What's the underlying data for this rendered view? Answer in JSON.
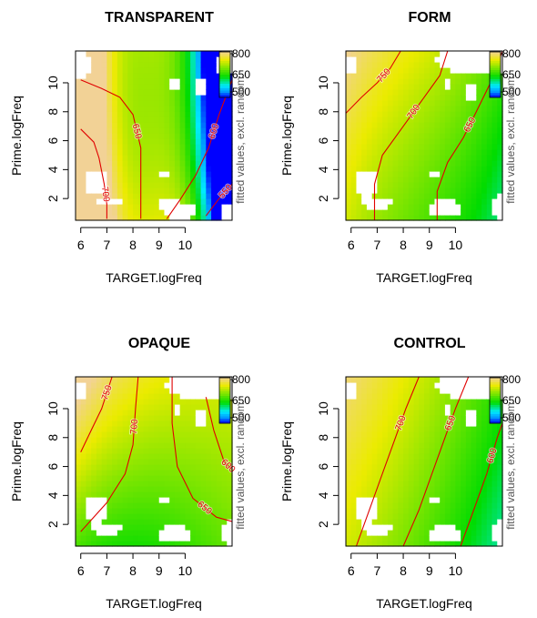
{
  "chart_data": [
    {
      "type": "heatmap",
      "title": "TRANSPARENT",
      "xlabel": "TARGET.logFreq",
      "ylabel": "Prime.logFreq",
      "colorbar_label": "fitted values, excl. random",
      "xlim": [
        5.8,
        11.8
      ],
      "ylim": [
        0.5,
        12.2
      ],
      "x_ticks": [
        "6",
        "7",
        "8",
        "9",
        "10"
      ],
      "y_ticks": [
        "2",
        "4",
        "6",
        "8",
        "10"
      ],
      "colorbar_ticks": [
        "800",
        "650",
        "500"
      ],
      "color_range": [
        480,
        800
      ],
      "model": {
        "a": 705,
        "bx": [
          0,
          10,
          -22
        ],
        "by": [
          -3,
          0.5,
          0
        ],
        "bxy": [
          0,
          -1.5,
          0
        ]
      },
      "holes": [
        [
          5.8,
          11.3,
          0.7,
          0.9
        ],
        [
          11.6,
          11.4,
          0.4,
          0.8
        ],
        [
          7.1,
          1.8,
          0.6,
          0.35
        ],
        [
          6.6,
          3.1,
          0.5,
          0.9
        ],
        [
          9.8,
          1.2,
          0.6,
          0.6
        ],
        [
          11.6,
          1.0,
          0.3,
          0.5
        ],
        [
          10.6,
          9.6,
          0.3,
          0.6
        ],
        [
          9.6,
          9.9,
          0.2,
          0.35
        ],
        [
          9.2,
          3.8,
          0.18,
          0.3
        ],
        [
          9.4,
          1.6,
          0.35,
          0.5
        ]
      ],
      "contours": [
        {
          "label": "650",
          "points": [
            [
              6.0,
              10.2
            ],
            [
              6.8,
              9.6
            ],
            [
              7.5,
              9.0
            ],
            [
              8.0,
              7.8
            ],
            [
              8.3,
              5.5
            ],
            [
              8.3,
              3.0
            ],
            [
              8.3,
              0.6
            ]
          ]
        },
        {
          "label": "700",
          "points": [
            [
              6.0,
              6.8
            ],
            [
              6.5,
              5.9
            ],
            [
              6.7,
              4.8
            ],
            [
              6.9,
              3.0
            ],
            [
              7.0,
              1.6
            ],
            [
              7.0,
              0.6
            ]
          ]
        },
        {
          "label": "600",
          "points": [
            [
              9.3,
              0.6
            ],
            [
              9.8,
              1.9
            ],
            [
              10.4,
              3.6
            ],
            [
              10.9,
              5.5
            ],
            [
              11.3,
              7.8
            ],
            [
              11.8,
              10.2
            ]
          ]
        },
        {
          "label": "550",
          "points": [
            [
              10.8,
              0.8
            ],
            [
              11.3,
              2.0
            ],
            [
              11.8,
              3.0
            ]
          ]
        }
      ]
    },
    {
      "type": "heatmap",
      "title": "FORM",
      "xlabel": "TARGET.logFreq",
      "ylabel": "Prime.logFreq",
      "colorbar_label": "fitted values, excl. random",
      "xlim": [
        5.8,
        11.8
      ],
      "ylim": [
        0.5,
        12.2
      ],
      "x_ticks": [
        "6",
        "7",
        "8",
        "9",
        "10"
      ],
      "y_ticks": [
        "2",
        "4",
        "6",
        "8",
        "10"
      ],
      "colorbar_ticks": [
        "800",
        "650",
        "500"
      ],
      "color_range": [
        480,
        800
      ],
      "model": {
        "a": 700,
        "bx": [
          -18,
          0,
          -0.6
        ],
        "by": [
          6,
          0.1,
          0
        ],
        "bxy": [
          0,
          0,
          0
        ]
      },
      "holes": [
        [
          5.8,
          11.3,
          0.4,
          0.7
        ],
        [
          10.8,
          11.6,
          1.6,
          0.9
        ],
        [
          7.0,
          1.7,
          0.6,
          0.4
        ],
        [
          6.6,
          3.0,
          0.5,
          0.9
        ],
        [
          9.6,
          1.3,
          0.7,
          0.6
        ],
        [
          11.7,
          1.5,
          0.25,
          0.9
        ],
        [
          10.6,
          9.5,
          0.3,
          0.6
        ],
        [
          9.7,
          10.0,
          0.2,
          0.35
        ],
        [
          9.2,
          3.7,
          0.18,
          0.3
        ]
      ],
      "contours": [
        {
          "label": "750",
          "points": [
            [
              5.8,
              7.9
            ],
            [
              6.4,
              9.0
            ],
            [
              7.0,
              10.0
            ],
            [
              7.5,
              11.0
            ],
            [
              7.9,
              12.2
            ]
          ]
        },
        {
          "label": "700",
          "points": [
            [
              6.9,
              0.5
            ],
            [
              6.9,
              3.0
            ],
            [
              7.2,
              5.0
            ],
            [
              8.0,
              7.0
            ],
            [
              8.8,
              9.0
            ],
            [
              9.4,
              10.5
            ],
            [
              9.7,
              12.2
            ]
          ]
        },
        {
          "label": "650",
          "points": [
            [
              9.3,
              0.5
            ],
            [
              9.3,
              2.5
            ],
            [
              9.7,
              4.5
            ],
            [
              10.3,
              6.2
            ],
            [
              10.8,
              8.0
            ],
            [
              11.4,
              10.2
            ],
            [
              11.8,
              12.2
            ]
          ]
        }
      ]
    },
    {
      "type": "heatmap",
      "title": "OPAQUE",
      "xlabel": "TARGET.logFreq",
      "ylabel": "Prime.logFreq",
      "colorbar_label": "fitted values, excl. random",
      "xlim": [
        5.8,
        11.8
      ],
      "ylim": [
        0.5,
        12.2
      ],
      "x_ticks": [
        "6",
        "7",
        "8",
        "9",
        "10"
      ],
      "y_ticks": [
        "2",
        "4",
        "6",
        "8",
        "10"
      ],
      "colorbar_ticks": [
        "800",
        "650",
        "500"
      ],
      "color_range": [
        480,
        800
      ],
      "model": {
        "a": 690,
        "bx": [
          -4,
          4,
          -0.5
        ],
        "by": [
          10,
          0,
          0
        ],
        "bxy": [
          -1.5,
          0,
          0
        ]
      },
      "holes": [
        [
          5.8,
          11.3,
          0.4,
          0.7
        ],
        [
          10.8,
          11.6,
          1.6,
          0.9
        ],
        [
          7.0,
          1.7,
          0.6,
          0.4
        ],
        [
          6.6,
          3.0,
          0.5,
          0.9
        ],
        [
          9.6,
          1.3,
          0.7,
          0.6
        ],
        [
          11.7,
          1.5,
          0.25,
          0.9
        ],
        [
          10.6,
          9.5,
          0.3,
          0.6
        ],
        [
          9.7,
          10.0,
          0.2,
          0.35
        ],
        [
          9.2,
          3.7,
          0.18,
          0.3
        ]
      ],
      "contours": [
        {
          "label": "750",
          "points": [
            [
              6.0,
              7.0
            ],
            [
              6.4,
              8.5
            ],
            [
              6.8,
              10.0
            ],
            [
              7.2,
              12.2
            ]
          ]
        },
        {
          "label": "700",
          "points": [
            [
              6.0,
              1.5
            ],
            [
              7.0,
              3.5
            ],
            [
              7.7,
              5.5
            ],
            [
              8.0,
              7.5
            ],
            [
              8.1,
              10.0
            ],
            [
              8.2,
              12.2
            ]
          ]
        },
        {
          "label": "650",
          "points": [
            [
              9.5,
              12.2
            ],
            [
              9.5,
              9.0
            ],
            [
              9.7,
              6.0
            ],
            [
              10.3,
              3.8
            ],
            [
              11.2,
              2.5
            ],
            [
              11.8,
              2.2
            ]
          ]
        },
        {
          "label": "600",
          "points": [
            [
              10.8,
              10.8
            ],
            [
              11.1,
              8.5
            ],
            [
              11.5,
              6.3
            ],
            [
              11.8,
              5.8
            ]
          ]
        }
      ]
    },
    {
      "type": "heatmap",
      "title": "CONTROL",
      "xlabel": "TARGET.logFreq",
      "ylabel": "Prime.logFreq",
      "colorbar_label": "fitted values, excl. random",
      "xlim": [
        5.8,
        11.8
      ],
      "ylim": [
        0.5,
        12.2
      ],
      "x_ticks": [
        "6",
        "7",
        "8",
        "9",
        "10"
      ],
      "y_ticks": [
        "2",
        "4",
        "6",
        "8",
        "10"
      ],
      "colorbar_ticks": [
        "800",
        "650",
        "500"
      ],
      "color_range": [
        480,
        800
      ],
      "model": {
        "a": 700,
        "bx": [
          -24,
          -1,
          0
        ],
        "by": [
          5,
          0,
          0
        ],
        "bxy": [
          0,
          0,
          0
        ]
      },
      "holes": [
        [
          5.8,
          11.3,
          0.4,
          0.7
        ],
        [
          10.8,
          11.6,
          1.6,
          0.9
        ],
        [
          7.0,
          1.7,
          0.6,
          0.4
        ],
        [
          6.6,
          3.0,
          0.5,
          0.9
        ],
        [
          9.6,
          1.3,
          0.7,
          0.6
        ],
        [
          11.7,
          1.5,
          0.25,
          0.9
        ],
        [
          10.6,
          9.5,
          0.3,
          0.6
        ],
        [
          9.7,
          10.0,
          0.2,
          0.35
        ],
        [
          9.2,
          3.7,
          0.18,
          0.3
        ]
      ],
      "contours": [
        {
          "label": "700",
          "points": [
            [
              6.2,
              0.5
            ],
            [
              6.7,
              3.0
            ],
            [
              7.2,
              5.5
            ],
            [
              7.7,
              8.0
            ],
            [
              8.1,
              10.0
            ],
            [
              8.6,
              12.2
            ]
          ]
        },
        {
          "label": "650",
          "points": [
            [
              8.0,
              0.5
            ],
            [
              8.6,
              3.0
            ],
            [
              9.1,
              5.5
            ],
            [
              9.6,
              8.0
            ],
            [
              10.0,
              10.0
            ],
            [
              10.5,
              12.2
            ]
          ]
        },
        {
          "label": "600",
          "points": [
            [
              10.2,
              0.5
            ],
            [
              10.7,
              3.0
            ],
            [
              11.2,
              5.5
            ],
            [
              11.6,
              8.0
            ],
            [
              11.8,
              9.0
            ]
          ]
        }
      ]
    }
  ]
}
